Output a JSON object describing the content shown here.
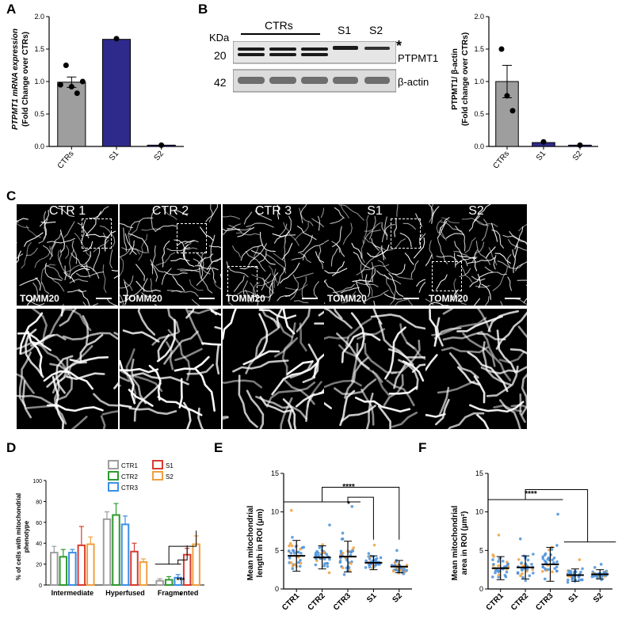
{
  "panel_labels": {
    "a": "A",
    "b": "B",
    "c": "C",
    "d": "D",
    "e": "E",
    "f": "F"
  },
  "panel_a": {
    "ylabel_line1": "PTPMT1 mRNA expression",
    "ylabel_line2": "(Fold Change over CTRs)",
    "yticks": [
      "0.0",
      "0.5",
      "1.0",
      "1.5",
      "2.0"
    ]
  },
  "panel_b_blot": {
    "kda": "KDa",
    "ctrs": "CTRs",
    "s1": "S1",
    "s2": "S2",
    "mw_top": "20",
    "mw_bottom": "42",
    "star": "*",
    "band_top": "PTPMT1",
    "band_bottom": "β-actin"
  },
  "panel_b_chart": {
    "ylabel_line1": "PTPMT1/ β-actin",
    "ylabel_line2": "(Fold change over CTRs)",
    "yticks": [
      "0.0",
      "0.5",
      "1.0",
      "1.5",
      "2.0"
    ]
  },
  "panel_c": {
    "titles": [
      "CTR 1",
      "CTR 2",
      "CTR 3",
      "S1",
      "S2"
    ],
    "stain": "TOMM20"
  },
  "panel_d": {
    "ylabel_line1": "% of cells with mitochondrial",
    "ylabel_line2": "phenotype",
    "yticks": [
      "0",
      "20",
      "40",
      "60",
      "80",
      "100"
    ],
    "groups": [
      "Intermediate",
      "Hyperfused",
      "Fragmented"
    ],
    "legend": [
      "CTR1",
      "S1",
      "CTR2",
      "S2",
      "CTR3"
    ],
    "sig1": "***",
    "sig2": "*"
  },
  "panel_e": {
    "ylabel_line1": "Mean mitochondrial",
    "ylabel_line2": "length in ROI (μm)",
    "yticks": [
      "0",
      "5",
      "10",
      "15"
    ],
    "sig1": "****",
    "sig2": "*"
  },
  "panel_f": {
    "ylabel_line1": "Mean mitochondrial",
    "ylabel_line2": "area in ROI (μm²)",
    "yticks": [
      "0",
      "5",
      "10",
      "15"
    ],
    "sig1": "****"
  },
  "chart_data": [
    {
      "type": "bar",
      "panel": "A",
      "categories": [
        "CTRs",
        "S1",
        "S2"
      ],
      "values": [
        0.99,
        1.65,
        0.02
      ],
      "errors": [
        0.08,
        0,
        0
      ],
      "points": [
        [
          0.95,
          1.25,
          0.92,
          0.82,
          1.0
        ],
        [
          1.66
        ],
        [
          0.02
        ]
      ],
      "colors": [
        "#9e9e9e",
        "#2e2a8c",
        "#2e2a8c"
      ],
      "ylim": [
        0,
        2
      ]
    },
    {
      "type": "bar",
      "panel": "B",
      "categories": [
        "CTRs",
        "S1",
        "S2"
      ],
      "values": [
        1.0,
        0.06,
        0.02
      ],
      "errors": [
        0.25,
        0,
        0
      ],
      "points": [
        [
          1.5,
          0.78,
          0.55
        ],
        [
          0.07
        ],
        [
          0.02
        ]
      ],
      "colors": [
        "#9e9e9e",
        "#2e2a8c",
        "#2e2a8c"
      ],
      "ylim": [
        0,
        2
      ]
    },
    {
      "type": "bar",
      "panel": "D",
      "categories": [
        "Intermediate",
        "Hyperfused",
        "Fragmented"
      ],
      "series": [
        {
          "name": "CTR1",
          "values": [
            31,
            63,
            4
          ],
          "errors": [
            6,
            7,
            2
          ],
          "color": "#9e9e9e"
        },
        {
          "name": "CTR2",
          "values": [
            27,
            67,
            5
          ],
          "errors": [
            7,
            11,
            3
          ],
          "color": "#2e9a2e"
        },
        {
          "name": "CTR3",
          "values": [
            31,
            58,
            7
          ],
          "errors": [
            3,
            8,
            3
          ],
          "color": "#3b8fe8"
        },
        {
          "name": "S1",
          "values": [
            38,
            32,
            29
          ],
          "errors": [
            18,
            8,
            6
          ],
          "color": "#d93a30"
        },
        {
          "name": "S2",
          "values": [
            39,
            22,
            39
          ],
          "errors": [
            7,
            3,
            8
          ],
          "color": "#f0a040"
        }
      ],
      "ylim": [
        0,
        100
      ]
    },
    {
      "type": "scatter",
      "panel": "E",
      "categories": [
        "CTR1",
        "CTR2",
        "CTR3",
        "S1",
        "S2"
      ],
      "means": [
        4.3,
        4.1,
        4.2,
        3.4,
        2.9
      ],
      "sd": [
        2.0,
        1.5,
        2.0,
        0.9,
        0.8
      ],
      "maxima": [
        10.2,
        8.3,
        10.7,
        5.7,
        5.0
      ],
      "ylim": [
        0,
        15
      ]
    },
    {
      "type": "scatter",
      "panel": "F",
      "categories": [
        "CTR1",
        "CTR2",
        "CTR3",
        "S1",
        "S2"
      ],
      "means": [
        2.7,
        2.8,
        3.2,
        1.8,
        1.9
      ],
      "sd": [
        1.5,
        1.5,
        2.2,
        0.8,
        0.6
      ],
      "maxima": [
        7.0,
        6.5,
        9.7,
        3.8,
        3.2
      ],
      "ylim": [
        0,
        15
      ]
    }
  ]
}
